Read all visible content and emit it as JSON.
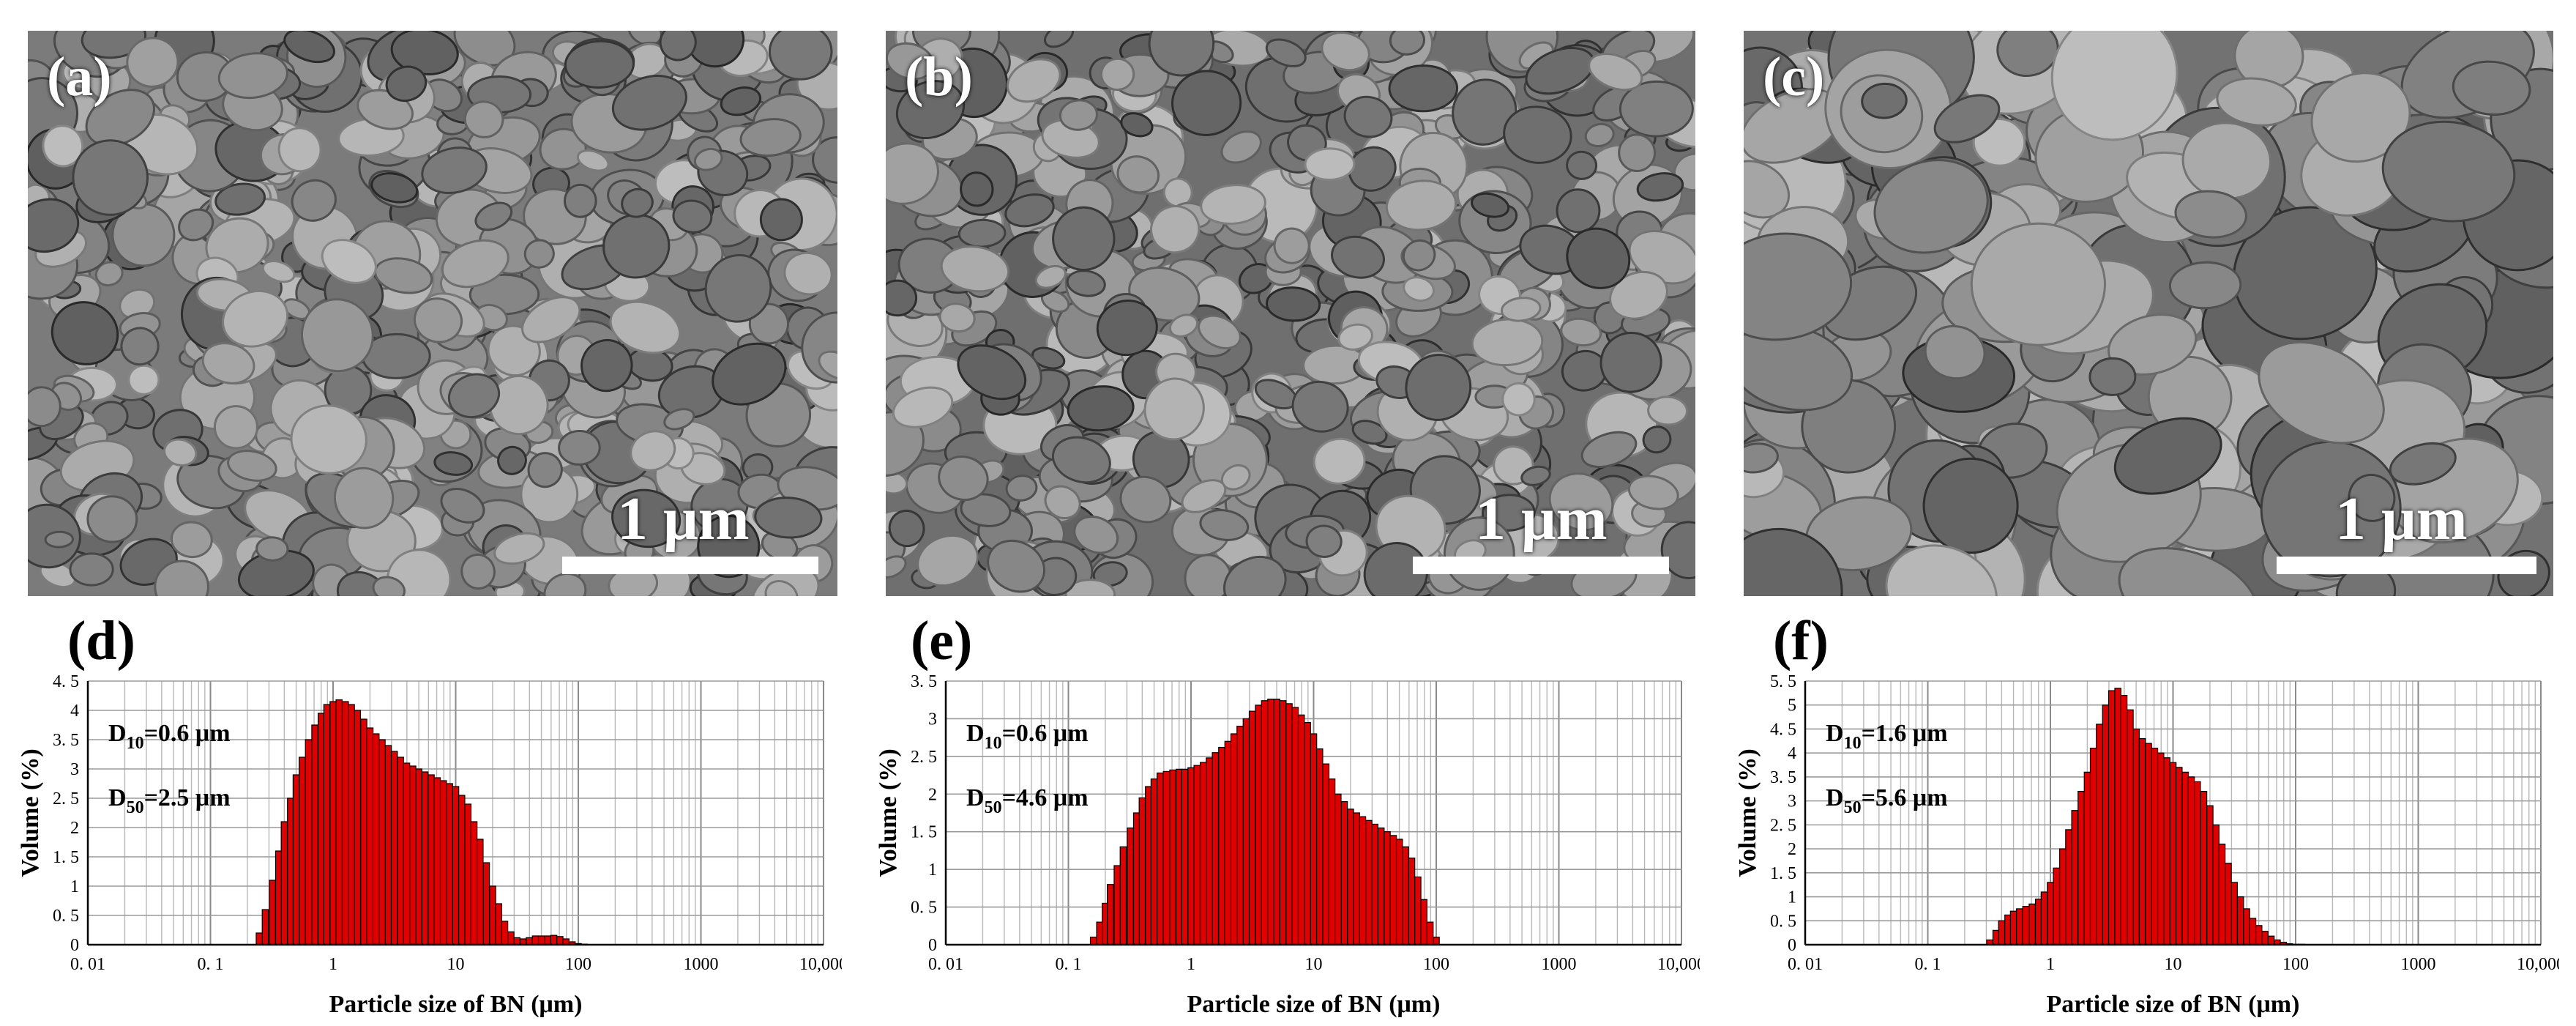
{
  "panels": [
    {
      "label": "(a)",
      "scale_text": "1 μm",
      "bg": "#7b7b7b"
    },
    {
      "label": "(b)",
      "scale_text": "1 μm",
      "bg": "#6f6f6f"
    },
    {
      "label": "(c)",
      "scale_text": "1 μm",
      "bg": "#727272"
    }
  ],
  "charts_labels": [
    "(d)",
    "(e)",
    "(f)"
  ],
  "chart_data": [
    {
      "type": "bar",
      "xscale": "log",
      "xlim": [
        0.01,
        10000
      ],
      "ylim": [
        0,
        4.5
      ],
      "yticks": [
        0,
        0.5,
        1,
        1.5,
        2,
        2.5,
        3,
        3.5,
        4,
        4.5
      ],
      "ytick_labels": [
        "0",
        "0. 5",
        "1",
        "1. 5",
        "2",
        "2. 5",
        "3",
        "3. 5",
        "4",
        "4. 5"
      ],
      "xtick_labels": [
        "0. 01",
        "0. 1",
        "1",
        "10",
        "100",
        "1000",
        "10,000"
      ],
      "xlabel": "Particle size of BN (μm)",
      "ylabel": "Volume (%)",
      "d10": {
        "main": "D",
        "sub": "10",
        "rest": "=0.6 μm"
      },
      "d50": {
        "main": "D",
        "sub": "50",
        "rest": "=2.5 μm"
      },
      "bar_color": "#e00000",
      "x": [
        0.25,
        0.28,
        0.32,
        0.36,
        0.4,
        0.45,
        0.5,
        0.56,
        0.63,
        0.71,
        0.8,
        0.89,
        1.0,
        1.12,
        1.26,
        1.41,
        1.58,
        1.78,
        2.0,
        2.24,
        2.51,
        2.82,
        3.16,
        3.55,
        3.98,
        4.47,
        5.01,
        5.62,
        6.31,
        7.08,
        7.94,
        8.91,
        10.0,
        11.2,
        12.6,
        14.1,
        15.8,
        17.8,
        20.0,
        22.4,
        25.1,
        28.2,
        31.6,
        35.5,
        39.8,
        44.7,
        50.1,
        56.2,
        63.1,
        70.8,
        79.4,
        89.1,
        100,
        112
      ],
      "values": [
        0.2,
        0.6,
        1.1,
        1.6,
        2.1,
        2.5,
        2.9,
        3.2,
        3.5,
        3.75,
        3.95,
        4.1,
        4.15,
        4.18,
        4.15,
        4.1,
        4.0,
        3.85,
        3.7,
        3.6,
        3.5,
        3.4,
        3.3,
        3.2,
        3.1,
        3.05,
        3.0,
        2.95,
        2.9,
        2.85,
        2.8,
        2.75,
        2.7,
        2.55,
        2.4,
        2.1,
        1.8,
        1.4,
        1.0,
        0.7,
        0.4,
        0.22,
        0.12,
        0.1,
        0.12,
        0.15,
        0.15,
        0.15,
        0.16,
        0.14,
        0.1,
        0.05,
        0.02,
        0.01
      ]
    },
    {
      "type": "bar",
      "xscale": "log",
      "xlim": [
        0.01,
        10000
      ],
      "ylim": [
        0,
        3.5
      ],
      "yticks": [
        0,
        0.5,
        1,
        1.5,
        2,
        2.5,
        3,
        3.5
      ],
      "ytick_labels": [
        "0",
        "0. 5",
        "1",
        "1. 5",
        "2",
        "2. 5",
        "3",
        "3. 5"
      ],
      "xtick_labels": [
        "0. 01",
        "0. 1",
        "1",
        "10",
        "100",
        "1000",
        "10,000"
      ],
      "xlabel": "Particle size of BN (μm)",
      "ylabel": "Volume (%)",
      "d10": {
        "main": "D",
        "sub": "10",
        "rest": "=0.6 μm"
      },
      "d50": {
        "main": "D",
        "sub": "50",
        "rest": "=4.6 μm"
      },
      "bar_color": "#e00000",
      "x": [
        0.16,
        0.18,
        0.2,
        0.22,
        0.25,
        0.28,
        0.32,
        0.36,
        0.4,
        0.45,
        0.5,
        0.56,
        0.63,
        0.71,
        0.8,
        0.89,
        1.0,
        1.12,
        1.26,
        1.41,
        1.58,
        1.78,
        2.0,
        2.24,
        2.51,
        2.82,
        3.16,
        3.55,
        3.98,
        4.47,
        5.01,
        5.62,
        6.31,
        7.08,
        7.94,
        8.91,
        10.0,
        11.2,
        12.6,
        14.1,
        15.8,
        17.8,
        20.0,
        22.4,
        25.1,
        28.2,
        31.6,
        35.5,
        39.8,
        44.7,
        50.1,
        56.2,
        63.1,
        70.8,
        79.4,
        89.1,
        100
      ],
      "values": [
        0.1,
        0.3,
        0.55,
        0.8,
        1.05,
        1.3,
        1.55,
        1.75,
        1.95,
        2.1,
        2.2,
        2.28,
        2.3,
        2.32,
        2.33,
        2.33,
        2.35,
        2.38,
        2.42,
        2.48,
        2.55,
        2.62,
        2.7,
        2.8,
        2.9,
        3.0,
        3.1,
        3.18,
        3.24,
        3.26,
        3.26,
        3.24,
        3.2,
        3.15,
        3.05,
        2.95,
        2.8,
        2.6,
        2.4,
        2.2,
        2.0,
        1.9,
        1.8,
        1.75,
        1.7,
        1.65,
        1.6,
        1.55,
        1.5,
        1.45,
        1.4,
        1.3,
        1.15,
        0.9,
        0.6,
        0.3,
        0.1
      ]
    },
    {
      "type": "bar",
      "xscale": "log",
      "xlim": [
        0.01,
        10000
      ],
      "ylim": [
        0,
        5.5
      ],
      "yticks": [
        0,
        0.5,
        1,
        1.5,
        2,
        2.5,
        3,
        3.5,
        4,
        4.5,
        5,
        5.5
      ],
      "ytick_labels": [
        "0",
        "0. 5",
        "1",
        "1. 5",
        "2",
        "2. 5",
        "3",
        "3. 5",
        "4",
        "4. 5",
        "5",
        "5. 5"
      ],
      "xtick_labels": [
        "0. 01",
        "0. 1",
        "1",
        "10",
        "100",
        "1000",
        "10,000"
      ],
      "xlabel": "Particle size of BN (μm)",
      "ylabel": "Volume (%)",
      "d10": {
        "main": "D",
        "sub": "10",
        "rest": "=1.6 μm"
      },
      "d50": {
        "main": "D",
        "sub": "50",
        "rest": "=5.6 μm"
      },
      "bar_color": "#e00000",
      "x": [
        0.32,
        0.36,
        0.4,
        0.45,
        0.5,
        0.56,
        0.63,
        0.71,
        0.8,
        0.89,
        1.0,
        1.12,
        1.26,
        1.41,
        1.58,
        1.78,
        2.0,
        2.24,
        2.51,
        2.82,
        3.16,
        3.55,
        3.98,
        4.47,
        5.01,
        5.62,
        6.31,
        7.08,
        7.94,
        8.91,
        10.0,
        11.2,
        12.6,
        14.1,
        15.8,
        17.8,
        20.0,
        22.4,
        25.1,
        28.2,
        31.6,
        35.5,
        39.8,
        44.7,
        50.1,
        56.2,
        63.1,
        70.8,
        79.4,
        89.1,
        100,
        112
      ],
      "values": [
        0.1,
        0.3,
        0.5,
        0.62,
        0.7,
        0.75,
        0.8,
        0.85,
        0.95,
        1.1,
        1.3,
        1.6,
        2.0,
        2.4,
        2.8,
        3.2,
        3.6,
        4.1,
        4.6,
        5.0,
        5.3,
        5.35,
        5.2,
        4.9,
        4.5,
        4.3,
        4.2,
        4.1,
        4.0,
        3.9,
        3.8,
        3.7,
        3.6,
        3.5,
        3.4,
        3.2,
        2.9,
        2.5,
        2.1,
        1.7,
        1.3,
        1.0,
        0.75,
        0.55,
        0.4,
        0.28,
        0.18,
        0.1,
        0.05,
        0.02,
        0.01,
        0.01
      ]
    }
  ]
}
